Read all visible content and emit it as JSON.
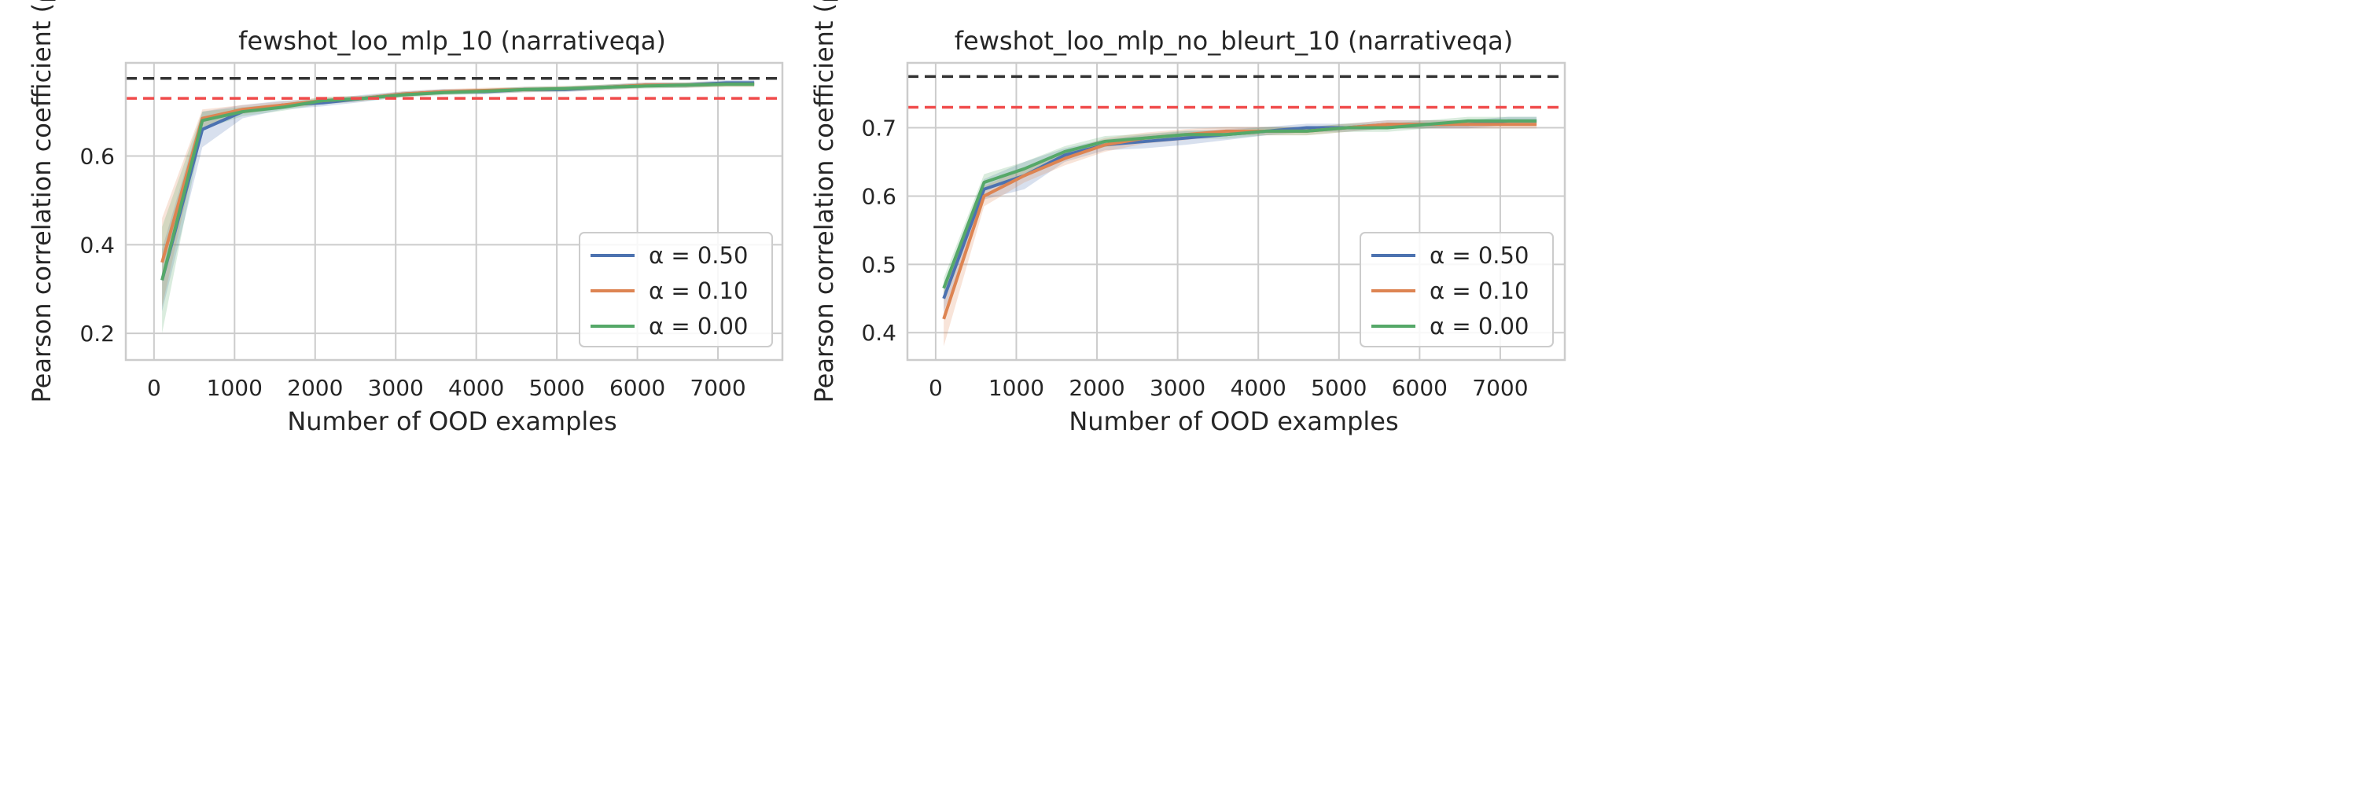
{
  "chart_data": [
    {
      "type": "line",
      "title": "fewshot_loo_mlp_10 (narrativeqa)",
      "xlabel": "Number of OOD examples",
      "ylabel": "Pearson correlation coefficient (ρ",
      "xlim": [
        -350,
        7800
      ],
      "ylim": [
        0.14,
        0.81
      ],
      "xticks": [
        0,
        1000,
        2000,
        3000,
        4000,
        5000,
        6000,
        7000
      ],
      "yticks": [
        0.2,
        0.4,
        0.6
      ],
      "ytick_labels": [
        "0.2",
        "0.4",
        "0.6"
      ],
      "grid": true,
      "legend_position": "lower-right",
      "reference_lines": [
        {
          "style": "dashed",
          "color": "#333333",
          "y": 0.775
        },
        {
          "style": "dashed",
          "color": "#f04b4b",
          "y": 0.73
        }
      ],
      "x": [
        100,
        600,
        1100,
        1600,
        2100,
        2600,
        3100,
        3600,
        4100,
        4600,
        5100,
        5600,
        6100,
        6600,
        7100,
        7450
      ],
      "series": [
        {
          "name": "α = 0.50",
          "color": "#4c72b0",
          "values": [
            0.32,
            0.66,
            0.7,
            0.715,
            0.72,
            0.73,
            0.74,
            0.745,
            0.745,
            0.75,
            0.75,
            0.755,
            0.76,
            0.76,
            0.765,
            0.765
          ],
          "band": [
            0.07,
            0.04,
            0.015,
            0.01,
            0.008,
            0.008,
            0.006,
            0.006,
            0.006,
            0.006,
            0.006,
            0.006,
            0.006,
            0.006,
            0.006,
            0.006
          ]
        },
        {
          "name": "α = 0.10",
          "color": "#dd8452",
          "values": [
            0.36,
            0.685,
            0.705,
            0.715,
            0.725,
            0.73,
            0.74,
            0.745,
            0.748,
            0.75,
            0.752,
            0.755,
            0.76,
            0.76,
            0.762,
            0.762
          ],
          "band": [
            0.1,
            0.02,
            0.01,
            0.008,
            0.008,
            0.006,
            0.006,
            0.006,
            0.006,
            0.006,
            0.006,
            0.006,
            0.006,
            0.006,
            0.006,
            0.006
          ]
        },
        {
          "name": "α = 0.00",
          "color": "#55a868",
          "values": [
            0.32,
            0.68,
            0.7,
            0.71,
            0.725,
            0.73,
            0.738,
            0.743,
            0.746,
            0.75,
            0.752,
            0.755,
            0.758,
            0.76,
            0.762,
            0.762
          ],
          "band": [
            0.12,
            0.02,
            0.01,
            0.008,
            0.008,
            0.006,
            0.006,
            0.006,
            0.006,
            0.006,
            0.006,
            0.006,
            0.006,
            0.006,
            0.006,
            0.006
          ]
        }
      ]
    },
    {
      "type": "line",
      "title": "fewshot_loo_mlp_no_bleurt_10 (narrativeqa)",
      "xlabel": "Number of OOD examples",
      "ylabel": "Pearson correlation coefficient (ρ",
      "xlim": [
        -350,
        7800
      ],
      "ylim": [
        0.36,
        0.795
      ],
      "xticks": [
        0,
        1000,
        2000,
        3000,
        4000,
        5000,
        6000,
        7000
      ],
      "yticks": [
        0.4,
        0.5,
        0.6,
        0.7
      ],
      "ytick_labels": [
        "0.4",
        "0.5",
        "0.6",
        "0.7"
      ],
      "grid": true,
      "legend_position": "lower-right",
      "reference_lines": [
        {
          "style": "dashed",
          "color": "#333333",
          "y": 0.775
        },
        {
          "style": "dashed",
          "color": "#f04b4b",
          "y": 0.73
        }
      ],
      "x": [
        100,
        600,
        1100,
        1600,
        2100,
        2600,
        3100,
        3600,
        4100,
        4600,
        5100,
        5600,
        6100,
        6600,
        7100,
        7450
      ],
      "series": [
        {
          "name": "α = 0.50",
          "color": "#4c72b0",
          "values": [
            0.45,
            0.61,
            0.63,
            0.66,
            0.675,
            0.68,
            0.685,
            0.69,
            0.695,
            0.7,
            0.7,
            0.705,
            0.705,
            0.705,
            0.71,
            0.71
          ],
          "band": [
            0.02,
            0.015,
            0.02,
            0.01,
            0.008,
            0.01,
            0.01,
            0.008,
            0.006,
            0.006,
            0.006,
            0.006,
            0.006,
            0.006,
            0.006,
            0.006
          ]
        },
        {
          "name": "α = 0.10",
          "color": "#dd8452",
          "values": [
            0.42,
            0.6,
            0.63,
            0.655,
            0.675,
            0.685,
            0.69,
            0.695,
            0.695,
            0.695,
            0.7,
            0.705,
            0.705,
            0.705,
            0.705,
            0.705
          ],
          "band": [
            0.04,
            0.015,
            0.01,
            0.01,
            0.01,
            0.008,
            0.008,
            0.006,
            0.006,
            0.006,
            0.006,
            0.006,
            0.006,
            0.006,
            0.006,
            0.006
          ]
        },
        {
          "name": "α = 0.00",
          "color": "#55a868",
          "values": [
            0.465,
            0.62,
            0.64,
            0.665,
            0.68,
            0.685,
            0.69,
            0.69,
            0.695,
            0.695,
            0.7,
            0.7,
            0.705,
            0.71,
            0.71,
            0.71
          ],
          "band": [
            0.015,
            0.012,
            0.01,
            0.008,
            0.008,
            0.006,
            0.006,
            0.006,
            0.006,
            0.006,
            0.006,
            0.006,
            0.006,
            0.006,
            0.006,
            0.006
          ]
        }
      ]
    }
  ]
}
